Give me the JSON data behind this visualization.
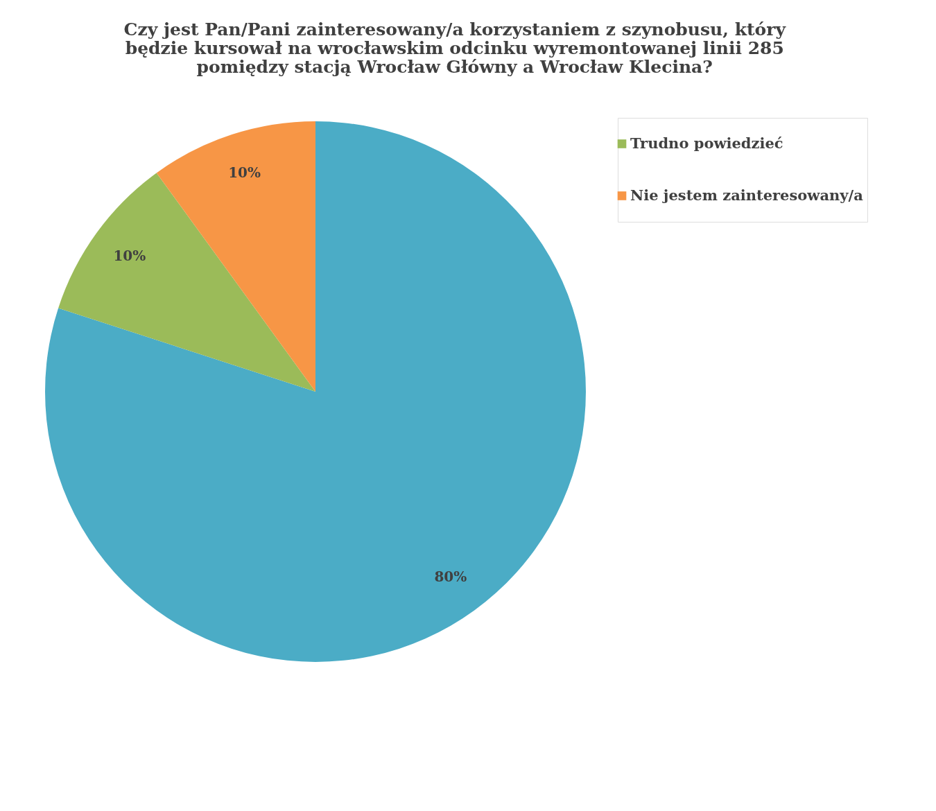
{
  "chart_data": {
    "type": "pie",
    "title": "Czy jest Pan/Pani zainteresowany/a korzystaniem z szynobusu, który\nbędzie kursował na wrocławskim odcinku wyremontowanej linii 285\npomiędzy stacją Wrocław Główny a Wrocław Klecina?",
    "categories": [
      null,
      "Trudno powiedzieć",
      "Nie jestem zainteresowany/a"
    ],
    "values": [
      80,
      10,
      10
    ],
    "value_labels": [
      "80%",
      "10%",
      "10%"
    ],
    "colors": [
      "#4bacc6",
      "#9bbb59",
      "#f79646"
    ],
    "legend": "right"
  }
}
